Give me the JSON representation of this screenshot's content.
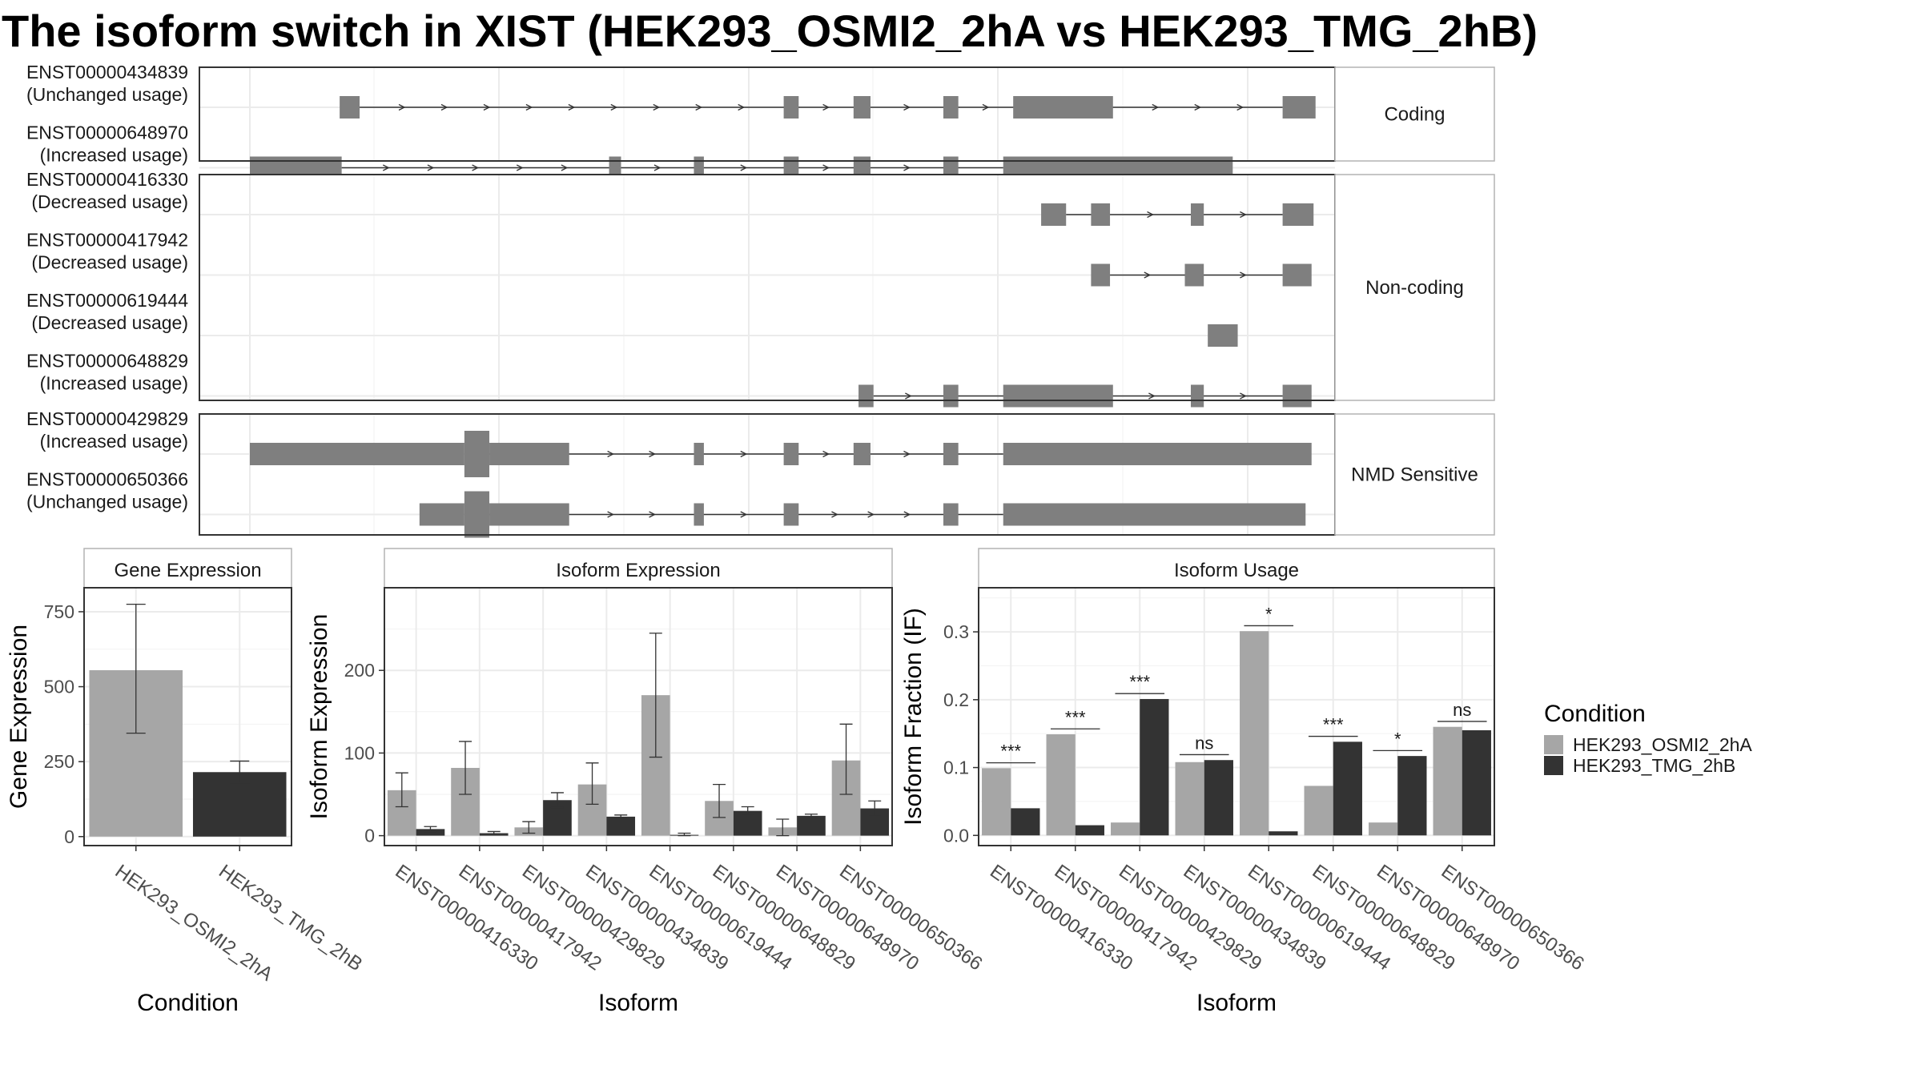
{
  "title": "The isoform switch in XIST (HEK293_OSMI2_2hA vs HEK293_TMG_2hB)",
  "colors": {
    "exon": "#7f7f7f",
    "intron_line": "#333333",
    "panel_border": "#333333",
    "strip_border": "#b3b3b3",
    "grid": "#ebebeb",
    "cond_a": "#a6a6a6",
    "cond_b": "#333333"
  },
  "structure_panel": {
    "groups": [
      {
        "label": "Coding",
        "isoforms": [
          {
            "id": "ENST00000434839",
            "usage": "(Unchanged usage)",
            "exons": [
              [
                0.09,
                0.11
              ],
              [
                0.535,
                0.55
              ],
              [
                0.605,
                0.622
              ],
              [
                0.695,
                0.71
              ],
              [
                0.765,
                0.865
              ],
              [
                1.035,
                1.068
              ]
            ]
          },
          {
            "id": "ENST00000648970",
            "usage": "(Increased usage)",
            "exons": [
              [
                0.0,
                0.092
              ],
              [
                0.36,
                0.372
              ],
              [
                0.445,
                0.455
              ],
              [
                0.535,
                0.55
              ],
              [
                0.605,
                0.622
              ],
              [
                0.695,
                0.71
              ],
              [
                0.755,
                0.985
              ]
            ]
          }
        ]
      },
      {
        "label": "Non-coding",
        "isoforms": [
          {
            "id": "ENST00000416330",
            "usage": "(Decreased usage)",
            "exons": [
              [
                0.793,
                0.818
              ],
              [
                0.843,
                0.862
              ],
              [
                0.943,
                0.956
              ],
              [
                1.035,
                1.066
              ]
            ]
          },
          {
            "id": "ENST00000417942",
            "usage": "(Decreased usage)",
            "exons": [
              [
                0.843,
                0.862
              ],
              [
                0.937,
                0.956
              ],
              [
                1.035,
                1.064
              ]
            ]
          },
          {
            "id": "ENST00000619444",
            "usage": "(Decreased usage)",
            "exons": [
              [
                0.96,
                0.99
              ]
            ]
          },
          {
            "id": "ENST00000648829",
            "usage": "(Increased usage)",
            "exons": [
              [
                0.61,
                0.625
              ],
              [
                0.695,
                0.71
              ],
              [
                0.755,
                0.865
              ],
              [
                0.943,
                0.956
              ],
              [
                1.035,
                1.064
              ]
            ]
          }
        ]
      },
      {
        "label": "NMD Sensitive",
        "isoforms": [
          {
            "id": "ENST00000429829",
            "usage": "(Increased usage)",
            "exons": [
              [
                0.0,
                0.215
              ],
              [
                0.215,
                0.24,
                "tall"
              ],
              [
                0.24,
                0.32
              ],
              [
                0.445,
                0.455
              ],
              [
                0.535,
                0.55
              ],
              [
                0.605,
                0.622
              ],
              [
                0.695,
                0.71
              ],
              [
                0.755,
                1.064
              ]
            ]
          },
          {
            "id": "ENST00000650366",
            "usage": "(Unchanged usage)",
            "exons": [
              [
                0.17,
                0.215
              ],
              [
                0.215,
                0.24,
                "tall"
              ],
              [
                0.24,
                0.32
              ],
              [
                0.445,
                0.455
              ],
              [
                0.535,
                0.55
              ],
              [
                0.695,
                0.71
              ],
              [
                0.755,
                1.058
              ]
            ]
          }
        ]
      }
    ]
  },
  "chart_data": [
    {
      "type": "bar",
      "title": "Gene Expression",
      "xlabel": "Condition",
      "ylabel": "Gene Expression",
      "categories": [
        "HEK293_OSMI2_2hA",
        "HEK293_TMG_2hB"
      ],
      "values": [
        555,
        215
      ],
      "error_low": [
        345,
        178
      ],
      "error_high": [
        775,
        252
      ],
      "ylim": [
        -30,
        830
      ],
      "yticks": [
        0,
        250,
        500,
        750
      ],
      "grid": true
    },
    {
      "type": "bar",
      "title": "Isoform Expression",
      "xlabel": "Isoform",
      "ylabel": "Isoform Expression",
      "categories": [
        "ENST00000416330",
        "ENST00000417942",
        "ENST00000429829",
        "ENST00000434839",
        "ENST00000619444",
        "ENST00000648829",
        "ENST00000648970",
        "ENST00000650366"
      ],
      "series": [
        {
          "name": "HEK293_OSMI2_2hA",
          "values": [
            55,
            82,
            10,
            62,
            170,
            42,
            10,
            91
          ],
          "error_low": [
            35,
            50,
            3,
            38,
            95,
            22,
            0,
            50
          ],
          "error_high": [
            76,
            114,
            17,
            88,
            245,
            62,
            20,
            135
          ]
        },
        {
          "name": "HEK293_TMG_2hB",
          "values": [
            8,
            3,
            43,
            23,
            1,
            30,
            24,
            33
          ],
          "error_low": [
            5,
            1,
            34,
            21,
            0,
            25,
            22,
            24
          ],
          "error_high": [
            11,
            5,
            52,
            25,
            3,
            35,
            26,
            42
          ]
        }
      ],
      "ylim": [
        -12,
        300
      ],
      "yticks": [
        0,
        100,
        200
      ],
      "grid": true
    },
    {
      "type": "bar",
      "title": "Isoform Usage",
      "xlabel": "Isoform",
      "ylabel": "Isoform Fraction (IF)",
      "categories": [
        "ENST00000416330",
        "ENST00000417942",
        "ENST00000429829",
        "ENST00000434839",
        "ENST00000619444",
        "ENST00000648829",
        "ENST00000648970",
        "ENST00000650366"
      ],
      "series": [
        {
          "name": "HEK293_OSMI2_2hA",
          "values": [
            0.099,
            0.149,
            0.019,
            0.108,
            0.301,
            0.073,
            0.019,
            0.16
          ]
        },
        {
          "name": "HEK293_TMG_2hB",
          "values": [
            0.04,
            0.015,
            0.201,
            0.111,
            0.006,
            0.138,
            0.117,
            0.155
          ]
        }
      ],
      "significance": [
        "***",
        "***",
        "***",
        "ns",
        "*",
        "***",
        "*",
        "ns"
      ],
      "ylim": [
        -0.015,
        0.365
      ],
      "yticks": [
        0.0,
        0.1,
        0.2,
        0.3
      ],
      "yticklabels": [
        "0.0",
        "0.1",
        "0.2",
        "0.3"
      ],
      "grid": true
    }
  ],
  "legend": {
    "title": "Condition",
    "entries": [
      "HEK293_OSMI2_2hA",
      "HEK293_TMG_2hB"
    ],
    "placement": "right"
  }
}
